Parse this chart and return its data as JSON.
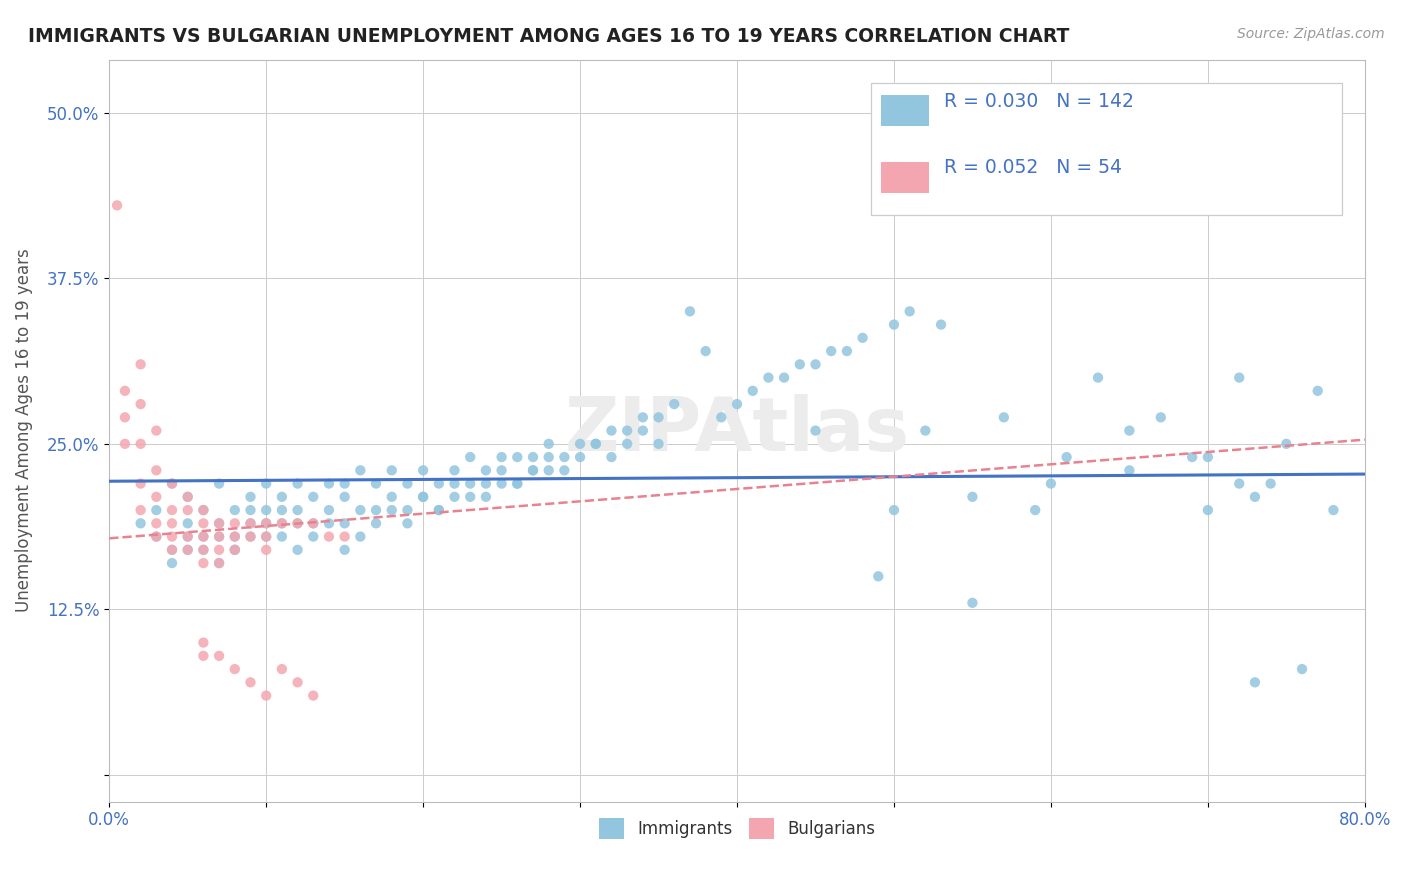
{
  "title": "IMMIGRANTS VS BULGARIAN UNEMPLOYMENT AMONG AGES 16 TO 19 YEARS CORRELATION CHART",
  "source": "Source: ZipAtlas.com",
  "ylabel": "Unemployment Among Ages 16 to 19 years",
  "xlim": [
    0.0,
    0.8
  ],
  "ylim": [
    -0.02,
    0.54
  ],
  "legend_r_immigrants": "0.030",
  "legend_n_immigrants": "142",
  "legend_r_bulgarians": "0.052",
  "legend_n_bulgarians": "54",
  "immigrant_color": "#92C5DE",
  "bulgarian_color": "#F4A6B0",
  "trend_immigrant_color": "#4472C4",
  "trend_bulgarian_color": "#E8828F",
  "immigrants_x": [
    0.02,
    0.03,
    0.03,
    0.04,
    0.04,
    0.05,
    0.05,
    0.05,
    0.06,
    0.06,
    0.07,
    0.07,
    0.07,
    0.08,
    0.08,
    0.08,
    0.09,
    0.09,
    0.09,
    0.1,
    0.1,
    0.1,
    0.11,
    0.11,
    0.11,
    0.12,
    0.12,
    0.12,
    0.13,
    0.13,
    0.14,
    0.14,
    0.15,
    0.15,
    0.15,
    0.16,
    0.16,
    0.17,
    0.17,
    0.18,
    0.18,
    0.19,
    0.19,
    0.2,
    0.2,
    0.21,
    0.21,
    0.22,
    0.22,
    0.23,
    0.23,
    0.24,
    0.24,
    0.25,
    0.25,
    0.26,
    0.26,
    0.27,
    0.27,
    0.28,
    0.28,
    0.29,
    0.3,
    0.31,
    0.32,
    0.33,
    0.34,
    0.35,
    0.36,
    0.37,
    0.38,
    0.39,
    0.4,
    0.41,
    0.42,
    0.43,
    0.44,
    0.45,
    0.46,
    0.47,
    0.48,
    0.49,
    0.5,
    0.51,
    0.52,
    0.53,
    0.55,
    0.57,
    0.59,
    0.61,
    0.63,
    0.65,
    0.67,
    0.69,
    0.7,
    0.72,
    0.73,
    0.74,
    0.75,
    0.76,
    0.77,
    0.78,
    0.04,
    0.05,
    0.06,
    0.07,
    0.08,
    0.09,
    0.1,
    0.11,
    0.12,
    0.13,
    0.14,
    0.15,
    0.16,
    0.17,
    0.18,
    0.19,
    0.2,
    0.21,
    0.22,
    0.23,
    0.24,
    0.25,
    0.26,
    0.27,
    0.28,
    0.29,
    0.3,
    0.31,
    0.32,
    0.33,
    0.34,
    0.35,
    0.45,
    0.5,
    0.55,
    0.6,
    0.65,
    0.7,
    0.72,
    0.73
  ],
  "immigrants_y": [
    0.19,
    0.2,
    0.18,
    0.22,
    0.17,
    0.21,
    0.19,
    0.18,
    0.2,
    0.17,
    0.22,
    0.19,
    0.18,
    0.2,
    0.18,
    0.17,
    0.21,
    0.2,
    0.19,
    0.22,
    0.2,
    0.18,
    0.21,
    0.2,
    0.19,
    0.22,
    0.2,
    0.19,
    0.21,
    0.19,
    0.22,
    0.2,
    0.22,
    0.21,
    0.19,
    0.23,
    0.2,
    0.22,
    0.2,
    0.23,
    0.21,
    0.22,
    0.2,
    0.23,
    0.21,
    0.22,
    0.2,
    0.23,
    0.22,
    0.24,
    0.21,
    0.23,
    0.22,
    0.24,
    0.22,
    0.24,
    0.22,
    0.24,
    0.23,
    0.25,
    0.23,
    0.24,
    0.25,
    0.25,
    0.26,
    0.26,
    0.27,
    0.27,
    0.28,
    0.35,
    0.32,
    0.27,
    0.28,
    0.29,
    0.3,
    0.3,
    0.31,
    0.31,
    0.32,
    0.32,
    0.33,
    0.15,
    0.34,
    0.35,
    0.26,
    0.34,
    0.13,
    0.27,
    0.2,
    0.24,
    0.3,
    0.26,
    0.27,
    0.24,
    0.2,
    0.3,
    0.07,
    0.22,
    0.25,
    0.08,
    0.29,
    0.2,
    0.16,
    0.17,
    0.18,
    0.16,
    0.17,
    0.18,
    0.19,
    0.18,
    0.17,
    0.18,
    0.19,
    0.17,
    0.18,
    0.19,
    0.2,
    0.19,
    0.21,
    0.2,
    0.21,
    0.22,
    0.21,
    0.23,
    0.22,
    0.23,
    0.24,
    0.23,
    0.24,
    0.25,
    0.24,
    0.25,
    0.26,
    0.25,
    0.26,
    0.2,
    0.21,
    0.22,
    0.23,
    0.24,
    0.22,
    0.21
  ],
  "bulgarians_x": [
    0.005,
    0.01,
    0.01,
    0.01,
    0.02,
    0.02,
    0.02,
    0.02,
    0.02,
    0.03,
    0.03,
    0.03,
    0.03,
    0.03,
    0.04,
    0.04,
    0.04,
    0.04,
    0.04,
    0.05,
    0.05,
    0.05,
    0.05,
    0.06,
    0.06,
    0.06,
    0.06,
    0.06,
    0.06,
    0.06,
    0.07,
    0.07,
    0.07,
    0.07,
    0.07,
    0.08,
    0.08,
    0.08,
    0.08,
    0.09,
    0.09,
    0.09,
    0.1,
    0.1,
    0.1,
    0.1,
    0.11,
    0.11,
    0.12,
    0.12,
    0.13,
    0.13,
    0.14,
    0.15
  ],
  "bulgarians_y": [
    0.43,
    0.29,
    0.27,
    0.25,
    0.31,
    0.28,
    0.25,
    0.22,
    0.2,
    0.26,
    0.23,
    0.21,
    0.19,
    0.18,
    0.22,
    0.2,
    0.19,
    0.18,
    0.17,
    0.21,
    0.2,
    0.18,
    0.17,
    0.2,
    0.19,
    0.18,
    0.17,
    0.16,
    0.1,
    0.09,
    0.19,
    0.18,
    0.17,
    0.16,
    0.09,
    0.19,
    0.18,
    0.17,
    0.08,
    0.19,
    0.18,
    0.07,
    0.19,
    0.18,
    0.17,
    0.06,
    0.19,
    0.08,
    0.19,
    0.07,
    0.19,
    0.06,
    0.18,
    0.18
  ]
}
